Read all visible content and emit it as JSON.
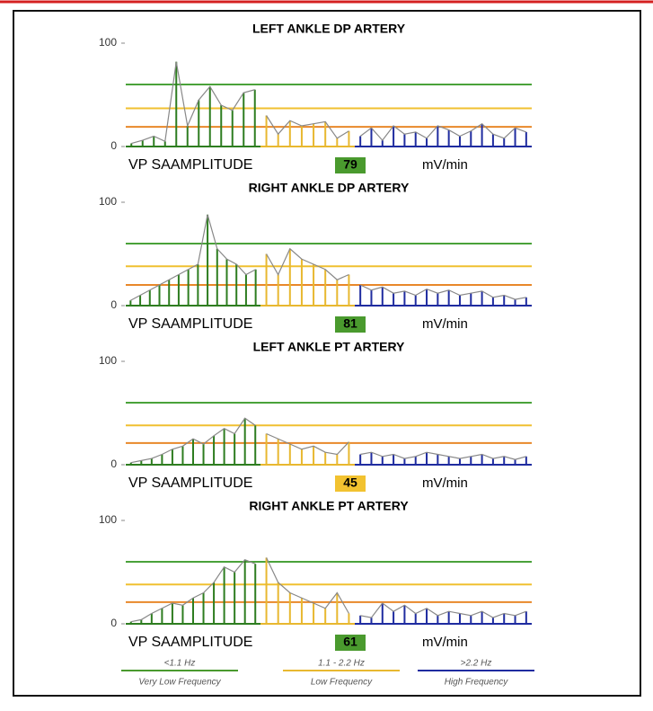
{
  "chart_data": [
    {
      "type": "bar",
      "title": "LEFT ANKLE DP ARTERY",
      "ylim": [
        0,
        100
      ],
      "yticks": [
        0,
        100
      ],
      "reference_lines": [
        {
          "value": 60,
          "color": "#4aa23a"
        },
        {
          "value": 37,
          "color": "#f0c030"
        },
        {
          "value": 19,
          "color": "#e8882a"
        }
      ],
      "series": [
        {
          "color": "#2e7d20",
          "values": [
            3,
            6,
            10,
            5,
            82,
            20,
            45,
            58,
            40,
            35,
            52,
            55
          ]
        },
        {
          "color": "#e8b830",
          "values": [
            30,
            12,
            25,
            20,
            22,
            24,
            8,
            15
          ]
        },
        {
          "color": "#1f2ca0",
          "values": [
            10,
            18,
            6,
            20,
            12,
            14,
            8,
            20,
            16,
            10,
            15,
            22,
            12,
            8,
            18,
            14
          ]
        }
      ],
      "amplitude_label": "VP SAAMPLITUDE",
      "amplitude": 79,
      "amplitude_color": "#4a9a2e",
      "unit": "mV/min"
    },
    {
      "type": "bar",
      "title": "RIGHT ANKLE DP ARTERY",
      "ylim": [
        0,
        100
      ],
      "yticks": [
        0,
        100
      ],
      "reference_lines": [
        {
          "value": 60,
          "color": "#4aa23a"
        },
        {
          "value": 38,
          "color": "#f0c030"
        },
        {
          "value": 20,
          "color": "#e8882a"
        }
      ],
      "series": [
        {
          "color": "#2e7d20",
          "values": [
            5,
            10,
            15,
            20,
            25,
            30,
            35,
            40,
            88,
            55,
            45,
            40,
            30,
            35
          ]
        },
        {
          "color": "#e8b830",
          "values": [
            50,
            30,
            55,
            45,
            40,
            35,
            25,
            30
          ]
        },
        {
          "color": "#1f2ca0",
          "values": [
            20,
            15,
            18,
            12,
            14,
            10,
            16,
            12,
            15,
            10,
            12,
            14,
            8,
            10,
            6,
            8
          ]
        }
      ],
      "amplitude_label": "VP SAAMPLITUDE",
      "amplitude": 81,
      "amplitude_color": "#4a9a2e",
      "unit": "mV/min"
    },
    {
      "type": "bar",
      "title": "LEFT ANKLE PT ARTERY",
      "ylim": [
        0,
        100
      ],
      "yticks": [
        0,
        100
      ],
      "reference_lines": [
        {
          "value": 60,
          "color": "#4aa23a"
        },
        {
          "value": 38,
          "color": "#f0c030"
        },
        {
          "value": 21,
          "color": "#e8882a"
        }
      ],
      "series": [
        {
          "color": "#2e7d20",
          "values": [
            2,
            4,
            6,
            10,
            15,
            18,
            25,
            20,
            28,
            35,
            30,
            45,
            38
          ]
        },
        {
          "color": "#e8b830",
          "values": [
            30,
            25,
            20,
            15,
            18,
            12,
            10,
            22
          ]
        },
        {
          "color": "#1f2ca0",
          "values": [
            10,
            12,
            8,
            10,
            6,
            8,
            12,
            10,
            8,
            6,
            8,
            10,
            6,
            8,
            5,
            8
          ]
        }
      ],
      "amplitude_label": "VP SAAMPLITUDE",
      "amplitude": 45,
      "amplitude_color": "#f2c230",
      "unit": "mV/min"
    },
    {
      "type": "bar",
      "title": "RIGHT ANKLE PT ARTERY",
      "ylim": [
        0,
        100
      ],
      "yticks": [
        0,
        100
      ],
      "reference_lines": [
        {
          "value": 60,
          "color": "#4aa23a"
        },
        {
          "value": 38,
          "color": "#f0c030"
        },
        {
          "value": 21,
          "color": "#e8882a"
        }
      ],
      "series": [
        {
          "color": "#2e7d20",
          "values": [
            2,
            4,
            10,
            15,
            20,
            18,
            25,
            30,
            40,
            55,
            50,
            62,
            58
          ]
        },
        {
          "color": "#e8b830",
          "values": [
            64,
            40,
            30,
            25,
            20,
            15,
            30,
            10
          ]
        },
        {
          "color": "#1f2ca0",
          "values": [
            8,
            6,
            20,
            12,
            18,
            10,
            15,
            8,
            12,
            10,
            8,
            12,
            6,
            10,
            8,
            12
          ]
        }
      ],
      "amplitude_label": "VP SAAMPLITUDE",
      "amplitude": 61,
      "amplitude_color": "#4a9a2e",
      "unit": "mV/min"
    }
  ],
  "legend": [
    {
      "range": "<1.1 Hz",
      "name": "Very Low Frequency",
      "color": "#4a9a2e"
    },
    {
      "range": "1.1 - 2.2 Hz",
      "name": "Low Frequency",
      "color": "#e8b830"
    },
    {
      "range": ">2.2 Hz",
      "name": "High Frequency",
      "color": "#1f2ca0"
    }
  ]
}
